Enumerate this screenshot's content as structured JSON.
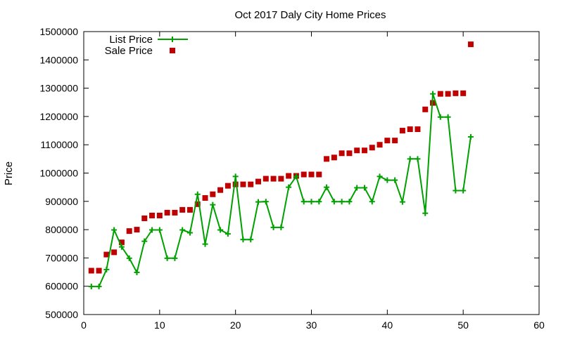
{
  "chart_data": {
    "type": "line",
    "title": "Oct 2017 Daly City Home Prices",
    "xlabel": "",
    "ylabel": "Price",
    "xlim": [
      0,
      60
    ],
    "ylim": [
      500000,
      1500000
    ],
    "xticks": [
      0,
      10,
      20,
      30,
      40,
      50,
      60
    ],
    "yticks": [
      500000,
      600000,
      700000,
      800000,
      900000,
      1000000,
      1100000,
      1200000,
      1300000,
      1400000,
      1500000
    ],
    "grid": false,
    "legend_position": "top-left",
    "series": [
      {
        "name": "List Price",
        "style": "line-with-plus-markers",
        "color": "#00a000",
        "x": [
          1,
          2,
          3,
          4,
          5,
          6,
          7,
          8,
          9,
          10,
          11,
          12,
          13,
          14,
          15,
          16,
          17,
          18,
          19,
          20,
          21,
          22,
          23,
          24,
          25,
          26,
          27,
          28,
          29,
          30,
          31,
          32,
          33,
          34,
          35,
          36,
          37,
          38,
          39,
          40,
          41,
          42,
          43,
          44,
          45,
          46,
          47,
          48,
          49,
          50,
          51
        ],
        "y": [
          599000,
          599000,
          659000,
          799000,
          739000,
          699000,
          649000,
          759000,
          799000,
          799000,
          699000,
          699000,
          799000,
          789000,
          925000,
          749000,
          888000,
          799000,
          785000,
          988000,
          765000,
          765000,
          898000,
          899000,
          808000,
          808000,
          950000,
          988000,
          899000,
          899000,
          899000,
          950000,
          899000,
          899000,
          899000,
          948000,
          948000,
          899000,
          988000,
          975000,
          975000,
          898000,
          1050000,
          1050000,
          858000,
          1280000,
          1198000,
          1198000,
          938000,
          938000,
          1128000
        ]
      },
      {
        "name": "Sale Price",
        "style": "square-markers",
        "color": "#c00000",
        "x": [
          1,
          2,
          3,
          4,
          5,
          6,
          7,
          8,
          9,
          10,
          11,
          12,
          13,
          14,
          15,
          16,
          17,
          18,
          19,
          20,
          21,
          22,
          23,
          24,
          25,
          26,
          27,
          28,
          29,
          30,
          31,
          32,
          33,
          34,
          35,
          36,
          37,
          38,
          39,
          40,
          41,
          42,
          43,
          44,
          45,
          46,
          47,
          48,
          49,
          50,
          51
        ],
        "y": [
          655000,
          655000,
          712000,
          720000,
          755000,
          795000,
          800000,
          840000,
          850000,
          850000,
          860000,
          860000,
          870000,
          870000,
          890000,
          912000,
          925000,
          940000,
          955000,
          960000,
          960000,
          960000,
          970000,
          980000,
          980000,
          980000,
          990000,
          990000,
          995000,
          995000,
          995000,
          1050000,
          1055000,
          1070000,
          1070000,
          1080000,
          1080000,
          1090000,
          1100000,
          1115000,
          1115000,
          1150000,
          1155000,
          1155000,
          1225000,
          1248000,
          1280000,
          1280000,
          1282000,
          1282000,
          1455000
        ]
      }
    ]
  }
}
